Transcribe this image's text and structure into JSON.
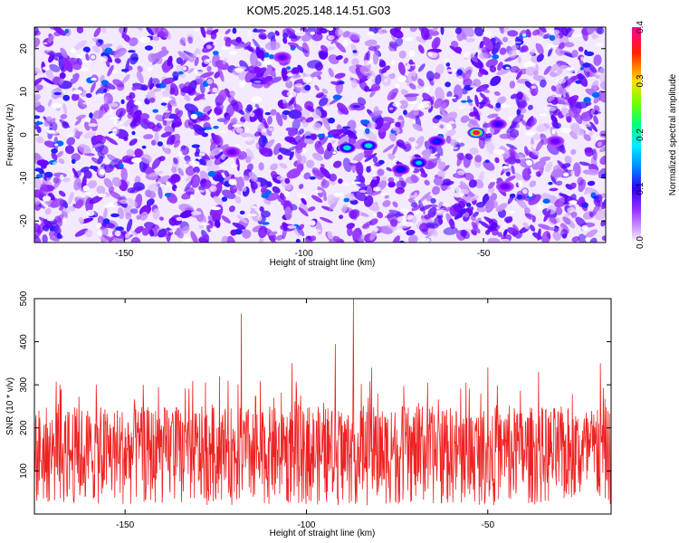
{
  "figure": {
    "title": "KOM5.2025.148.14.51.G03"
  },
  "chart_data": [
    {
      "type": "heatmap",
      "title": "KOM5.2025.148.14.51.G03",
      "xlabel": "Height of straight line (km)",
      "ylabel": "Frequency (Hz)",
      "xlim": [
        -175,
        -16
      ],
      "ylim": [
        -25,
        25
      ],
      "xticks": [
        -150,
        -100,
        -50
      ],
      "yticks": [
        -20,
        -10,
        0,
        10,
        20
      ],
      "colorbar": {
        "label": "Normalized spectral amplitude",
        "range": [
          0.0,
          0.4
        ],
        "ticks": [
          0.0,
          0.1,
          0.2,
          0.3,
          0.4
        ],
        "colormap": [
          "#ffffff",
          "#cc88ff",
          "#8800ff",
          "#0000ff",
          "#00ccff",
          "#00ff88",
          "#88ff00",
          "#ffcc00",
          "#ff0000",
          "#ff0088"
        ]
      },
      "hotspots": [
        {
          "x": -52,
          "y": 0.5,
          "value": 0.4
        },
        {
          "x": -88,
          "y": -3,
          "value": 0.2
        },
        {
          "x": -82,
          "y": -2.5,
          "value": 0.2
        },
        {
          "x": -68,
          "y": -6.5,
          "value": 0.18
        },
        {
          "x": -73,
          "y": -8,
          "value": 0.14
        },
        {
          "x": -63,
          "y": -1.5,
          "value": 0.14
        },
        {
          "x": -46,
          "y": 2.5,
          "value": 0.12
        },
        {
          "x": -30,
          "y": -1.5,
          "value": 0.1
        },
        {
          "x": -120,
          "y": -4,
          "value": 0.1
        },
        {
          "x": -106,
          "y": 18,
          "value": 0.1
        },
        {
          "x": -44,
          "y": -12,
          "value": 0.1
        }
      ]
    },
    {
      "type": "line",
      "xlabel": "Height of straight line (km)",
      "ylabel": "SNR (10 * v/v)",
      "xlim": [
        -175,
        -16
      ],
      "ylim": [
        0,
        500
      ],
      "xticks": [
        -150,
        -100,
        -50
      ],
      "yticks": [
        100,
        200,
        300,
        400,
        500
      ],
      "color": "#ee2222",
      "baseline_range": [
        20,
        250
      ],
      "peaks": [
        {
          "x": -118,
          "y": 465
        },
        {
          "x": -87,
          "y": 500
        },
        {
          "x": -92,
          "y": 395
        },
        {
          "x": -104,
          "y": 350
        },
        {
          "x": -50,
          "y": 340
        },
        {
          "x": -19,
          "y": 350
        },
        {
          "x": -124,
          "y": 320
        },
        {
          "x": -82,
          "y": 340
        },
        {
          "x": -145,
          "y": 300
        },
        {
          "x": -36,
          "y": 330
        },
        {
          "x": -158,
          "y": 300
        },
        {
          "x": -168,
          "y": 300
        }
      ]
    }
  ]
}
